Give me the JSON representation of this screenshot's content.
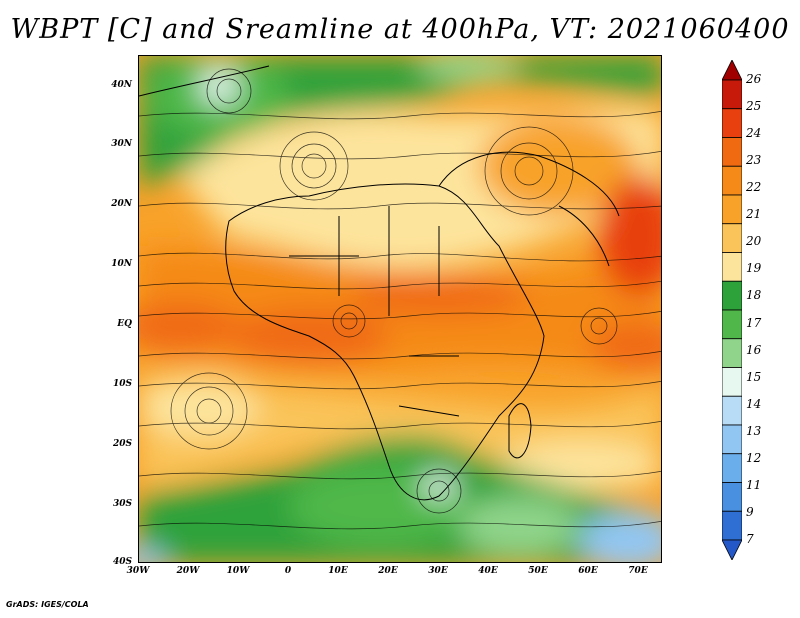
{
  "title": "WBPT [C] and Sreamline at 400hPa, VT: 2021060400",
  "credit": "GrADS: IGES/COLA",
  "lat_labels": [
    "40N",
    "30N",
    "20N",
    "10N",
    "EQ",
    "10S",
    "20S",
    "30S",
    "40S"
  ],
  "lon_labels": [
    "30W",
    "20W",
    "10W",
    "0",
    "10E",
    "20E",
    "30E",
    "40E",
    "50E",
    "60E",
    "70E"
  ],
  "colorbar": {
    "labels": [
      "26",
      "25",
      "24",
      "23",
      "22",
      "21",
      "20",
      "19",
      "18",
      "17",
      "16",
      "15",
      "14",
      "13",
      "12",
      "11",
      "9",
      "7"
    ],
    "colors": [
      "#a00000",
      "#c81a0a",
      "#e8400f",
      "#f06a12",
      "#f58a18",
      "#f8a22a",
      "#fac45a",
      "#fde49c",
      "#2ea23a",
      "#50b84a",
      "#8fd48a",
      "#e6f8f0",
      "#b8dcf6",
      "#92c6f2",
      "#6aaeec",
      "#4a90e0",
      "#2f6fd4",
      "#2458c8"
    ]
  },
  "map": {
    "region": "Africa and surrounding oceans",
    "lon_range": [
      -30,
      75
    ],
    "lat_range": [
      -40,
      45
    ],
    "fields": [
      "wet-bulb potential temperature",
      "streamlines"
    ]
  }
}
